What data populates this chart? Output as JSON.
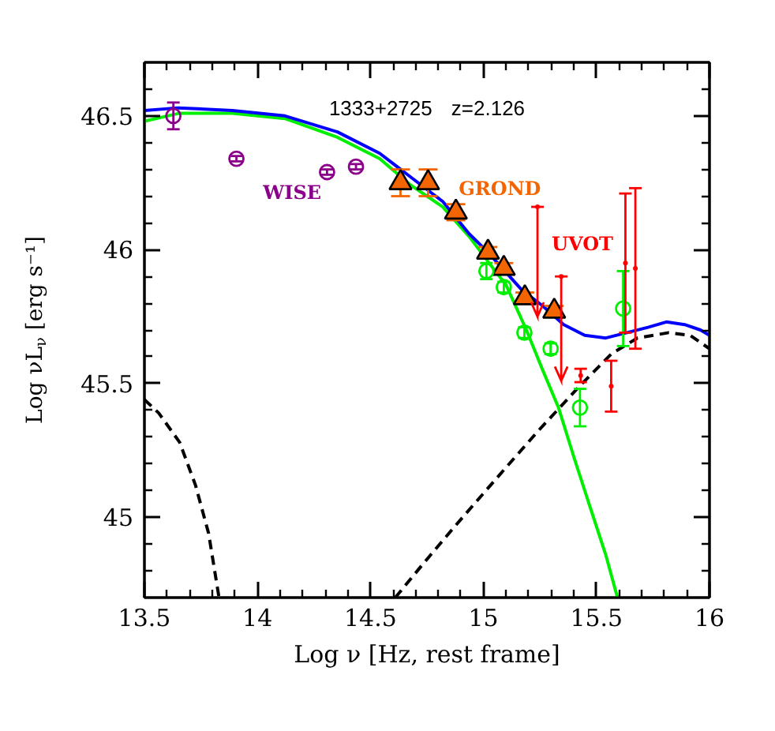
{
  "chart_data": {
    "type": "scatter",
    "xlabel": "Log ν [Hz, rest frame]",
    "ylabel": "Log νL$_{ν}$ [erg s⁻¹]",
    "annotations": [
      "1333+2725",
      "z=2.126"
    ],
    "xlim": [
      13.5,
      16
    ],
    "ylim": [
      44.7,
      46.7
    ],
    "xticks": [
      13.5,
      {
        "value": 13.6,
        "label": null
      },
      {
        "value": 13.7,
        "label": null
      },
      {
        "value": 13.8,
        "label": null
      },
      {
        "value": 13.9,
        "label": null
      },
      14,
      {
        "value": 14.1,
        "label": null
      },
      {
        "value": 14.2,
        "label": null
      },
      {
        "value": 14.3,
        "label": null
      },
      {
        "value": 14.4,
        "label": null
      },
      14.5,
      {
        "value": 14.6,
        "label": null
      },
      {
        "value": 14.7,
        "label": null
      },
      {
        "value": 14.8,
        "label": null
      },
      {
        "value": 14.9,
        "label": null
      },
      15,
      {
        "value": 15.1,
        "label": null
      },
      {
        "value": 15.2,
        "label": null
      },
      {
        "value": 15.3,
        "label": null
      },
      {
        "value": 15.4,
        "label": null
      },
      15.5,
      {
        "value": 15.6,
        "label": null
      },
      {
        "value": 15.7,
        "label": null
      },
      {
        "value": 15.8,
        "label": null
      },
      {
        "value": 15.9,
        "label": null
      },
      16
    ],
    "yticks": [
      {
        "value": 44.8,
        "label": null
      },
      {
        "value": 44.9,
        "label": null
      },
      45,
      {
        "value": 45.1,
        "label": null
      },
      {
        "value": 45.2,
        "label": null
      },
      {
        "value": 45.3,
        "label": null
      },
      {
        "value": 45.4,
        "label": null
      },
      45.5,
      {
        "value": 45.6,
        "label": null
      },
      {
        "value": 45.7,
        "label": null
      },
      {
        "value": 45.8,
        "label": null
      },
      {
        "value": 45.9,
        "label": null
      },
      46,
      {
        "value": 46.1,
        "label": null
      },
      {
        "value": 46.2,
        "label": null
      },
      {
        "value": 46.3,
        "label": null
      },
      {
        "value": 46.4,
        "label": null
      },
      46.5,
      {
        "value": 46.6,
        "label": null
      }
    ],
    "series": [
      {
        "type": "line",
        "color": "#000000",
        "line_style": "dashed",
        "x": [
          13.5,
          13.563,
          13.656,
          13.726,
          13.784,
          13.83
        ],
        "values": [
          45.44,
          45.39,
          45.28,
          45.12,
          44.94,
          44.7
        ]
      },
      {
        "type": "line",
        "color": "#000000",
        "line_style": "dashed",
        "x": [
          14.61,
          14.727,
          14.867,
          15.052,
          15.239,
          15.425,
          15.565,
          15.681,
          15.82,
          15.914,
          16.0
        ],
        "values": [
          44.7,
          44.82,
          44.96,
          45.14,
          45.32,
          45.49,
          45.61,
          45.67,
          45.69,
          45.68,
          45.63
        ]
      },
      {
        "type": "line",
        "color": "#00ee00",
        "line_style": "solid",
        "x": [
          13.5,
          13.656,
          13.889,
          14.122,
          14.354,
          14.541,
          14.68,
          14.82,
          14.936,
          15.052,
          15.099,
          15.19,
          15.262,
          15.332,
          15.402,
          15.471,
          15.541,
          15.593
        ],
        "values": [
          46.48,
          46.51,
          46.51,
          46.49,
          46.42,
          46.34,
          46.24,
          46.16,
          46.05,
          45.92,
          45.87,
          45.7,
          45.55,
          45.41,
          45.22,
          45.04,
          44.86,
          44.7
        ]
      },
      {
        "type": "line",
        "color": "#0000ff",
        "line_style": "solid",
        "x": [
          13.5,
          13.65,
          13.889,
          14.122,
          14.354,
          14.541,
          14.68,
          14.82,
          14.936,
          15.02,
          15.169,
          15.262,
          15.355,
          15.448,
          15.541,
          15.635,
          15.728,
          15.809,
          15.89,
          15.96,
          16.0
        ],
        "values": [
          46.52,
          46.53,
          46.52,
          46.5,
          46.44,
          46.36,
          46.27,
          46.18,
          46.06,
          45.99,
          45.85,
          45.79,
          45.72,
          45.68,
          45.67,
          45.69,
          45.71,
          45.73,
          45.72,
          45.7,
          45.68
        ]
      },
      {
        "name": "WISE",
        "color": "#8b008b",
        "marker": "circle",
        "x": [
          13.628,
          13.907,
          14.308,
          14.436
        ],
        "values": [
          46.5,
          46.34,
          46.29,
          46.31
        ],
        "errors": [
          0.05,
          0.01,
          0.01,
          0.01
        ]
      },
      {
        "name": "GROND",
        "color": "#f26500",
        "marker": "triangle",
        "x": [
          14.633,
          14.755,
          14.878,
          15.02,
          15.09,
          15.183,
          15.313
        ],
        "values": [
          46.25,
          46.25,
          46.14,
          45.99,
          45.93,
          45.82,
          45.77
        ],
        "errors": [
          0.05,
          0.05,
          0.03,
          0.02,
          0.02,
          0.02,
          0.02
        ]
      },
      {
        "color": "#00ee00",
        "marker": "circle",
        "x": [
          15.013,
          15.09,
          15.181,
          15.297,
          15.427,
          15.618
        ],
        "values": [
          45.92,
          45.86,
          45.69,
          45.63,
          45.41,
          45.78
        ],
        "errors": [
          0.03,
          0.02,
          0.02,
          0.02,
          0.07,
          0.14
        ]
      },
      {
        "name": "UVOT",
        "color": "#ff0000",
        "marker": "none",
        "x": [
          15.239,
          15.344,
          15.43,
          15.565,
          15.628,
          15.672
        ],
        "values": [
          46.16,
          45.9,
          45.53,
          45.49,
          45.95,
          45.93
        ],
        "errors": [
          [
            45.75,
            46.16
          ],
          [
            45.51,
            45.9
          ],
          0.025,
          0.095,
          0.26,
          0.3
        ]
      }
    ]
  }
}
